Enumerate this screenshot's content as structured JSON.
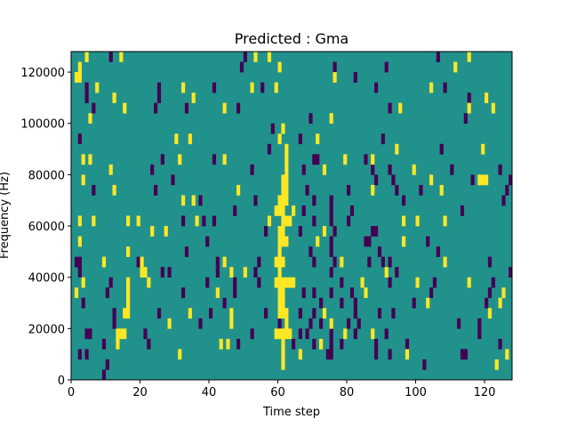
{
  "chart_data": {
    "type": "heatmap",
    "title": "Predicted : Gma",
    "xlabel": "Time step",
    "ylabel": "Frequency (Hz)",
    "xlim": [
      0,
      128
    ],
    "ylim": [
      0,
      128000
    ],
    "xticks": [
      0,
      20,
      40,
      60,
      80,
      100,
      120
    ],
    "yticks": [
      0,
      20000,
      40000,
      60000,
      80000,
      100000,
      120000
    ],
    "time_steps": 128,
    "freq_bins": 32,
    "freq_bin_hz": 4000,
    "colormap": "viridis",
    "value_colors": {
      "low": "#440154",
      "mid": "#21918c",
      "high": "#fde725"
    },
    "background_value": "mid",
    "high_cells_by_freq_bin": {
      "31": [
        4,
        14,
        53,
        57,
        115
      ],
      "30": [
        2,
        60,
        111
      ],
      "29": [
        1,
        2,
        76
      ],
      "28": [
        7,
        32,
        52,
        59,
        104
      ],
      "27": [
        12,
        35,
        120
      ],
      "26": [
        15,
        44,
        95,
        115,
        122
      ],
      "25": [
        5,
        75
      ],
      "24": [
        61
      ],
      "23": [
        30,
        34,
        60,
        71
      ],
      "22": [
        62,
        94,
        119
      ],
      "21": [
        3,
        5,
        31,
        44,
        62,
        79,
        87
      ],
      "20": [
        11,
        62,
        73,
        99
      ],
      "19": [
        3,
        61,
        62,
        104,
        118,
        119,
        120
      ],
      "18": [
        12,
        48,
        61,
        62,
        87,
        107
      ],
      "17": [
        32,
        35,
        60,
        61,
        62
      ],
      "16": [
        59,
        60,
        61,
        64
      ],
      "15": [
        2,
        6,
        16,
        19,
        36,
        57,
        61,
        62,
        63,
        96,
        100,
        108
      ],
      "14": [
        23,
        27,
        60,
        61,
        73
      ],
      "13": [
        2,
        60,
        61,
        62,
        71,
        96
      ],
      "12": [
        16,
        60
      ],
      "11": [
        9,
        20,
        44,
        59,
        60,
        61,
        78,
        108
      ],
      "10": [
        20,
        21,
        46,
        50,
        60,
        91
      ],
      "9": [
        3,
        16,
        22,
        59,
        60,
        61,
        62,
        63,
        64,
        84,
        100,
        115
      ],
      "8": [
        1,
        16,
        42,
        60,
        61,
        85,
        125
      ],
      "7": [
        16,
        60,
        61,
        103,
        124
      ],
      "6": [
        15,
        16,
        34,
        46,
        60,
        61,
        62,
        73,
        121
      ],
      "5": [
        28,
        46,
        62,
        75
      ],
      "4": [
        13,
        14,
        15,
        59,
        60,
        61,
        62,
        63,
        79,
        87
      ],
      "3": [
        13,
        43,
        45,
        61,
        72
      ],
      "2": [
        31,
        61,
        66,
        97,
        126
      ],
      "1": [
        61,
        123
      ],
      "0": []
    },
    "low_cells_by_freq_bin": {
      "31": [
        11,
        50,
        106
      ],
      "30": [
        49,
        76,
        91
      ],
      "29": [
        82
      ],
      "28": [
        4,
        25,
        41,
        55,
        88,
        108
      ],
      "27": [
        4,
        25,
        115
      ],
      "26": [
        6,
        24,
        33,
        48,
        92
      ],
      "25": [
        69,
        114
      ],
      "24": [
        58
      ],
      "23": [
        2,
        66,
        90
      ],
      "22": [
        57,
        107
      ],
      "21": [
        26,
        41,
        70,
        71,
        85
      ],
      "20": [
        23,
        52,
        67,
        87,
        92,
        110,
        124
      ],
      "19": [
        29,
        88,
        93,
        116,
        127
      ],
      "18": [
        6,
        24,
        68,
        80,
        94,
        101,
        126
      ],
      "17": [
        37,
        53,
        70,
        75,
        96,
        125
      ],
      "16": [
        47,
        67,
        75,
        81,
        113
      ],
      "15": [
        32,
        38,
        41,
        70,
        75,
        80
      ],
      "14": [
        56,
        66,
        76,
        87,
        88
      ],
      "13": [
        39,
        75,
        85,
        86,
        103
      ],
      "12": [
        33,
        69,
        75,
        89,
        106
      ],
      "11": [
        1,
        2,
        19,
        42,
        54,
        70,
        76,
        86,
        90,
        92,
        121
      ],
      "10": [
        2,
        26,
        28,
        42,
        53,
        75,
        94,
        127
      ],
      "9": [
        11,
        39,
        47,
        54,
        78,
        92,
        105,
        122
      ],
      "8": [
        10,
        32,
        47,
        67,
        70,
        75,
        81,
        104,
        121
      ],
      "7": [
        3,
        44,
        72,
        78,
        82,
        99,
        120
      ],
      "6": [
        12,
        25,
        40,
        56,
        66,
        70,
        82,
        89,
        93
      ],
      "5": [
        12,
        37,
        60,
        69,
        72,
        80,
        83,
        112,
        118
      ],
      "4": [
        4,
        5,
        21,
        52,
        66,
        68,
        75,
        82,
        91,
        118
      ],
      "3": [
        9,
        22,
        48,
        64,
        70,
        75,
        78,
        88,
        97,
        124
      ],
      "2": [
        2,
        4,
        74,
        75,
        88,
        92,
        113,
        114
      ],
      "1": [
        10,
        102
      ],
      "0": [
        9
      ]
    }
  }
}
